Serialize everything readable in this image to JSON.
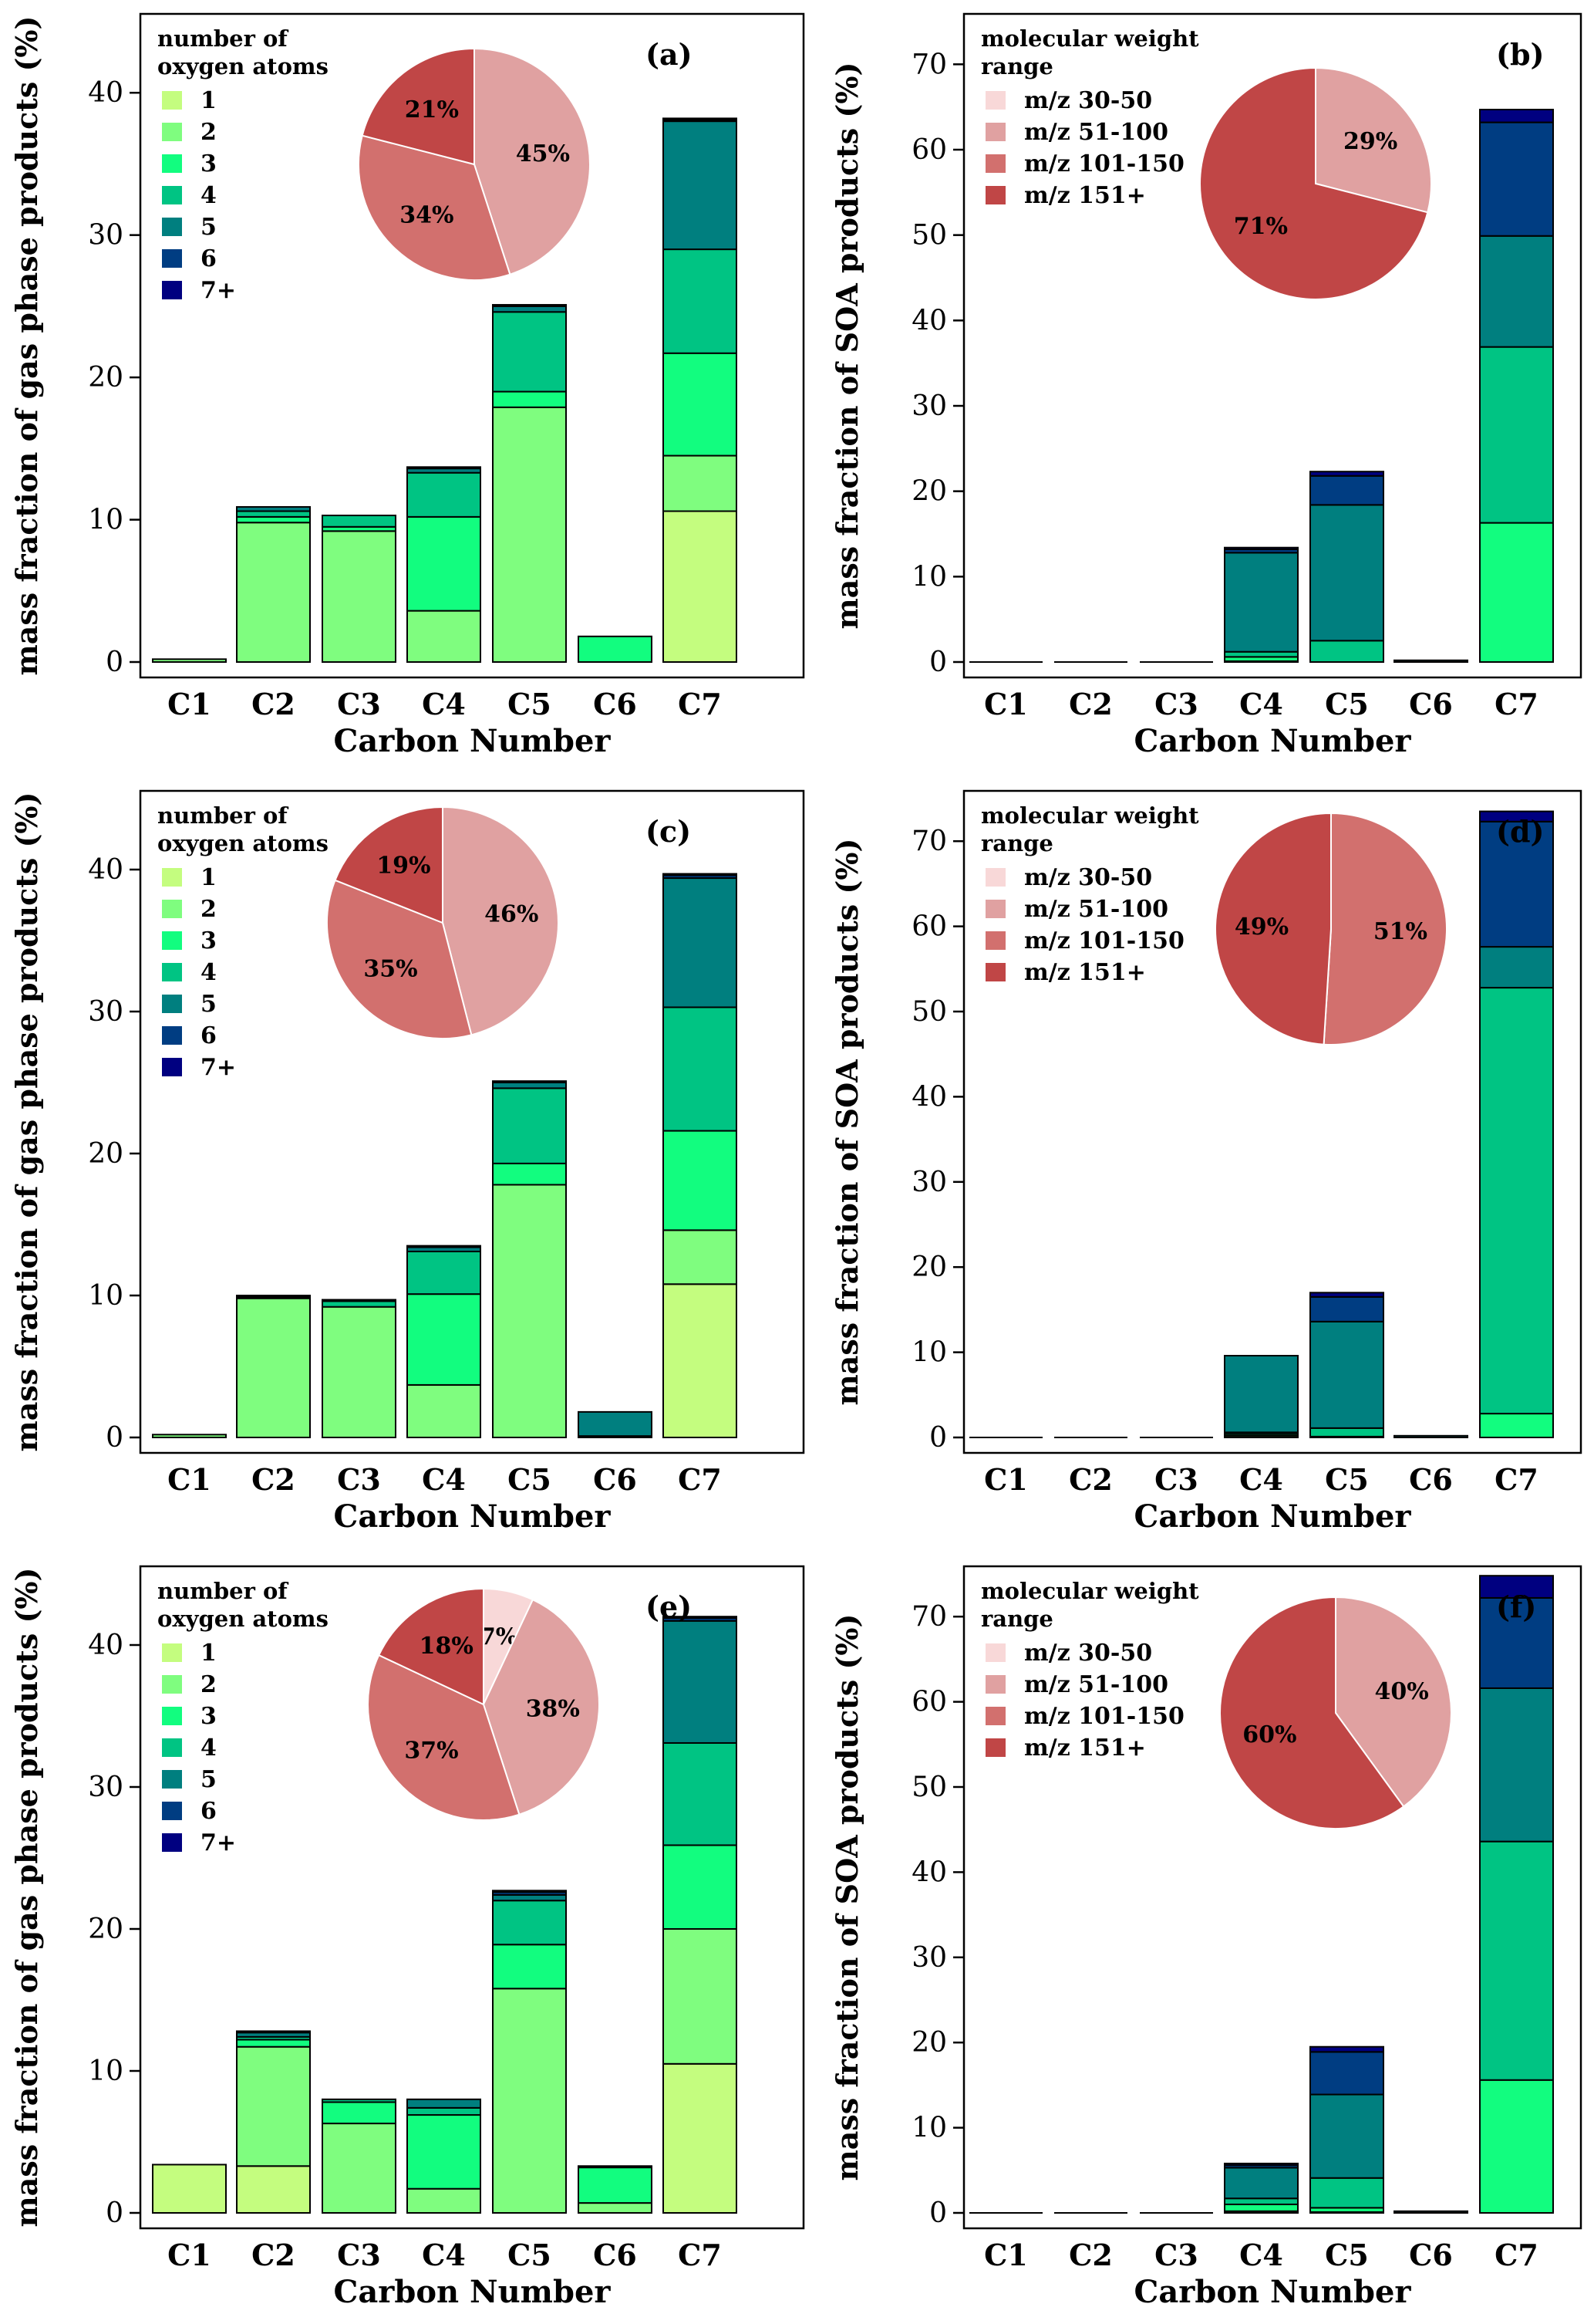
{
  "colors": {
    "oxygen": [
      "#c4fd7f",
      "#7ffd7f",
      "#12fd7f",
      "#00c483",
      "#007f7f",
      "#003d82",
      "#000080"
    ],
    "mw": [
      "#f8d8d8",
      "#e0a1a1",
      "#d2706e",
      "#c04646"
    ],
    "bar_stroke": "#000000"
  },
  "chart_data": [
    {
      "id": "a",
      "panel_label": "(a)",
      "type": "bar",
      "stacked": true,
      "ylabel": "mass fraction of gas phase products (%)",
      "xlabel": "Carbon Number",
      "ylim": [
        0,
        45
      ],
      "yticks": [
        0,
        10,
        20,
        30,
        40
      ],
      "categories": [
        "C1",
        "C2",
        "C3",
        "C4",
        "C5",
        "C6",
        "C7"
      ],
      "legend_title": [
        "number of",
        "oxygen atoms"
      ],
      "legend_kind": "oxygen",
      "series": [
        {
          "name": "1",
          "values": [
            0,
            0,
            0,
            0,
            0,
            0,
            10.6
          ]
        },
        {
          "name": "2",
          "values": [
            0.2,
            9.8,
            9.2,
            3.6,
            17.9,
            0,
            3.9
          ]
        },
        {
          "name": "3",
          "values": [
            0,
            0.4,
            0.3,
            6.6,
            1.1,
            1.8,
            7.2
          ]
        },
        {
          "name": "4",
          "values": [
            0,
            0.4,
            0.8,
            3.1,
            5.6,
            0,
            7.3
          ]
        },
        {
          "name": "5",
          "values": [
            0,
            0.3,
            0,
            0.3,
            0.4,
            0,
            9.0
          ]
        },
        {
          "name": "6",
          "values": [
            0,
            0,
            0,
            0.1,
            0.1,
            0,
            0.1
          ]
        },
        {
          "name": "7+",
          "values": [
            0,
            0,
            0,
            0,
            0,
            0,
            0.1
          ]
        }
      ],
      "pie": {
        "labels": [
          "m/z 30-50",
          "m/z 51-100",
          "m/z 101-150",
          "m/z 151+"
        ],
        "values": [
          0,
          45,
          34,
          21
        ],
        "value_labels": [
          "",
          "45%",
          "34%",
          "21%"
        ]
      }
    },
    {
      "id": "b",
      "panel_label": "(b)",
      "type": "bar",
      "stacked": true,
      "ylabel": "mass fraction of SOA products (%)",
      "xlabel": "Carbon Number",
      "ylim": [
        0,
        75
      ],
      "yticks": [
        0,
        10,
        20,
        30,
        40,
        50,
        60,
        70
      ],
      "categories": [
        "C1",
        "C2",
        "C3",
        "C4",
        "C5",
        "C6",
        "C7"
      ],
      "legend_title": [
        "molecular weight",
        "range"
      ],
      "legend_kind": "mw",
      "legend_entries": [
        "m/z 30-50",
        "m/z 51-100",
        "m/z 101-150",
        "m/z 151+"
      ],
      "series": [
        {
          "name": "1",
          "values": [
            0,
            0,
            0,
            0,
            0,
            0,
            0
          ]
        },
        {
          "name": "2",
          "values": [
            0,
            0,
            0,
            0.1,
            0,
            0,
            0
          ]
        },
        {
          "name": "3",
          "values": [
            0,
            0,
            0,
            0.5,
            0,
            0,
            16.3
          ]
        },
        {
          "name": "4",
          "values": [
            0,
            0,
            0,
            0.6,
            2.5,
            0,
            20.6
          ]
        },
        {
          "name": "5",
          "values": [
            0,
            0,
            0,
            11.6,
            15.9,
            0.2,
            13.0
          ]
        },
        {
          "name": "6",
          "values": [
            0,
            0,
            0,
            0.4,
            3.4,
            0,
            13.3
          ]
        },
        {
          "name": "7+",
          "values": [
            0,
            0,
            0,
            0.2,
            0.5,
            0,
            1.5
          ]
        }
      ],
      "pie": {
        "labels": [
          "m/z 30-50",
          "m/z 51-100",
          "m/z 101-150",
          "m/z 151+"
        ],
        "values": [
          0,
          29,
          0,
          71
        ],
        "value_labels": [
          "",
          "29%",
          "",
          "71%"
        ]
      }
    },
    {
      "id": "c",
      "panel_label": "(c)",
      "type": "bar",
      "stacked": true,
      "ylabel": "mass fraction of gas phase products (%)",
      "xlabel": "Carbon Number",
      "ylim": [
        0,
        45
      ],
      "yticks": [
        0,
        10,
        20,
        30,
        40
      ],
      "categories": [
        "C1",
        "C2",
        "C3",
        "C4",
        "C5",
        "C6",
        "C7"
      ],
      "legend_title": [
        "number of",
        "oxygen atoms"
      ],
      "legend_kind": "oxygen",
      "series": [
        {
          "name": "1",
          "values": [
            0,
            0,
            0,
            0,
            0,
            0,
            10.8
          ]
        },
        {
          "name": "2",
          "values": [
            0.2,
            9.8,
            9.2,
            3.7,
            17.8,
            0,
            3.8
          ]
        },
        {
          "name": "3",
          "values": [
            0,
            0.1,
            0,
            6.4,
            1.5,
            0.1,
            7.0
          ]
        },
        {
          "name": "4",
          "values": [
            0,
            0.1,
            0.4,
            3.0,
            5.3,
            0,
            8.7
          ]
        },
        {
          "name": "5",
          "values": [
            0,
            0,
            0.1,
            0.3,
            0.4,
            1.7,
            9.1
          ]
        },
        {
          "name": "6",
          "values": [
            0,
            0,
            0,
            0.1,
            0.1,
            0,
            0.2
          ]
        },
        {
          "name": "7+",
          "values": [
            0,
            0,
            0,
            0,
            0,
            0,
            0.1
          ]
        }
      ],
      "pie": {
        "labels": [
          "m/z 30-50",
          "m/z 51-100",
          "m/z 101-150",
          "m/z 151+"
        ],
        "values": [
          0,
          46,
          35,
          19
        ],
        "value_labels": [
          "",
          "46%",
          "35%",
          "19%"
        ]
      }
    },
    {
      "id": "d",
      "panel_label": "(d)",
      "type": "bar",
      "stacked": true,
      "ylabel": "mass fraction of SOA products (%)",
      "xlabel": "Carbon Number",
      "ylim": [
        0,
        75
      ],
      "yticks": [
        0,
        10,
        20,
        30,
        40,
        50,
        60,
        70
      ],
      "categories": [
        "C1",
        "C2",
        "C3",
        "C4",
        "C5",
        "C6",
        "C7"
      ],
      "legend_title": [
        "molecular weight",
        "range"
      ],
      "legend_kind": "mw",
      "legend_entries": [
        "m/z 30-50",
        "m/z 51-100",
        "m/z 101-150",
        "m/z 151+"
      ],
      "series": [
        {
          "name": "1",
          "values": [
            0,
            0,
            0,
            0,
            0,
            0,
            0
          ]
        },
        {
          "name": "2",
          "values": [
            0,
            0,
            0,
            0.2,
            0,
            0,
            0
          ]
        },
        {
          "name": "3",
          "values": [
            0,
            0,
            0,
            0.2,
            0.1,
            0,
            2.8
          ]
        },
        {
          "name": "4",
          "values": [
            0,
            0,
            0,
            0.2,
            1.0,
            0,
            50.0
          ]
        },
        {
          "name": "5",
          "values": [
            0,
            0,
            0,
            9.0,
            12.5,
            0.2,
            4.8
          ]
        },
        {
          "name": "6",
          "values": [
            0,
            0,
            0,
            0,
            2.9,
            0,
            14.7
          ]
        },
        {
          "name": "7+",
          "values": [
            0,
            0,
            0,
            0,
            0.5,
            0,
            1.2
          ]
        }
      ],
      "pie": {
        "labels": [
          "m/z 30-50",
          "m/z 51-100",
          "m/z 101-150",
          "m/z 151+"
        ],
        "values": [
          0,
          0,
          51,
          49
        ],
        "value_labels": [
          "",
          "",
          "51%",
          "49%"
        ]
      }
    },
    {
      "id": "e",
      "panel_label": "(e)",
      "type": "bar",
      "stacked": true,
      "ylabel": "mass fraction of gas phase products (%)",
      "xlabel": "Carbon Number",
      "ylim": [
        0,
        45
      ],
      "yticks": [
        0,
        10,
        20,
        30,
        40
      ],
      "categories": [
        "C1",
        "C2",
        "C3",
        "C4",
        "C5",
        "C6",
        "C7"
      ],
      "legend_title": [
        "number of",
        "oxygen atoms"
      ],
      "legend_kind": "oxygen",
      "series": [
        {
          "name": "1",
          "values": [
            3.4,
            3.3,
            0,
            0,
            0,
            0,
            10.5
          ]
        },
        {
          "name": "2",
          "values": [
            0,
            8.4,
            6.3,
            1.7,
            15.8,
            0.7,
            9.5
          ]
        },
        {
          "name": "3",
          "values": [
            0,
            0.5,
            1.5,
            5.2,
            3.1,
            2.5,
            5.9
          ]
        },
        {
          "name": "4",
          "values": [
            0,
            0.2,
            0.2,
            0.5,
            3.1,
            0.1,
            7.2
          ]
        },
        {
          "name": "5",
          "values": [
            0,
            0.3,
            0,
            0.6,
            0.4,
            0,
            8.6
          ]
        },
        {
          "name": "6",
          "values": [
            0,
            0.1,
            0,
            0,
            0.2,
            0,
            0.2
          ]
        },
        {
          "name": "7+",
          "values": [
            0,
            0,
            0,
            0,
            0.1,
            0,
            0.1
          ]
        }
      ],
      "pie": {
        "labels": [
          "m/z 30-50",
          "m/z 51-100",
          "m/z 101-150",
          "m/z 151+"
        ],
        "values": [
          7,
          38,
          37,
          18
        ],
        "value_labels": [
          "7%",
          "38%",
          "37%",
          "18%"
        ]
      }
    },
    {
      "id": "f",
      "panel_label": "(f)",
      "type": "bar",
      "stacked": true,
      "ylabel": "mass fraction of SOA products (%)",
      "xlabel": "Carbon Number",
      "ylim": [
        0,
        75
      ],
      "yticks": [
        0,
        10,
        20,
        30,
        40,
        50,
        60,
        70
      ],
      "categories": [
        "C1",
        "C2",
        "C3",
        "C4",
        "C5",
        "C6",
        "C7"
      ],
      "legend_title": [
        "molecular weight",
        "range"
      ],
      "legend_kind": "mw",
      "legend_entries": [
        "m/z 30-50",
        "m/z 51-100",
        "m/z 101-150",
        "m/z 151+"
      ],
      "series": [
        {
          "name": "1",
          "values": [
            0,
            0,
            0,
            0,
            0,
            0,
            0
          ]
        },
        {
          "name": "2",
          "values": [
            0,
            0,
            0,
            0.2,
            0.1,
            0,
            0
          ]
        },
        {
          "name": "3",
          "values": [
            0,
            0,
            0,
            0.8,
            0.5,
            0,
            15.6
          ]
        },
        {
          "name": "4",
          "values": [
            0,
            0,
            0,
            0.7,
            3.5,
            0,
            28.0
          ]
        },
        {
          "name": "5",
          "values": [
            0,
            0,
            0,
            3.6,
            9.8,
            0.2,
            18.0
          ]
        },
        {
          "name": "6",
          "values": [
            0,
            0,
            0,
            0.3,
            5.0,
            0,
            10.6
          ]
        },
        {
          "name": "7+",
          "values": [
            0,
            0,
            0,
            0.2,
            0.6,
            0,
            2.6
          ]
        }
      ],
      "pie": {
        "labels": [
          "m/z 30-50",
          "m/z 51-100",
          "m/z 101-150",
          "m/z 151+"
        ],
        "values": [
          0,
          40,
          0,
          60
        ],
        "value_labels": [
          "",
          "40%",
          "",
          "60%"
        ]
      }
    }
  ],
  "oxygen_legend_entries": [
    "1",
    "2",
    "3",
    "4",
    "5",
    "6",
    "7+"
  ]
}
